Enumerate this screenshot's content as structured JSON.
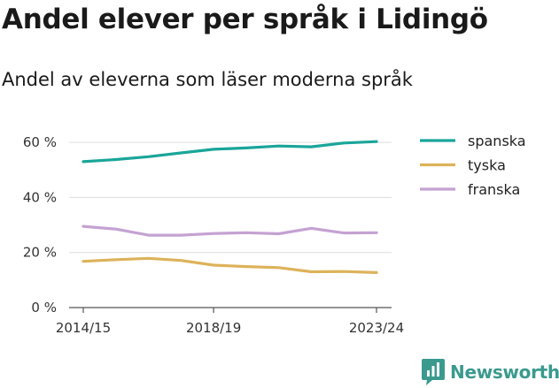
{
  "title": "Andel elever per språk i Lidingö",
  "subtitle": "Andel av eleverna som läser moderna språk",
  "brand": "Newsworthy",
  "chart_data": {
    "type": "line",
    "x": [
      "2014/15",
      "2015/16",
      "2016/17",
      "2017/18",
      "2018/19",
      "2019/20",
      "2020/21",
      "2021/22",
      "2022/23",
      "2023/24"
    ],
    "x_tick_labels": [
      "2014/15",
      "2018/19",
      "2023/24"
    ],
    "y_tick_labels": [
      "0 %",
      "20 %",
      "40 %",
      "60 %"
    ],
    "ylim": [
      0,
      70
    ],
    "y_ticks": [
      0,
      20,
      40,
      60
    ],
    "grid": true,
    "legend_position": "right",
    "series": [
      {
        "name": "spanska",
        "color": "#1aa59a",
        "values": [
          53.0,
          53.8,
          54.8,
          56.2,
          57.5,
          58.0,
          58.7,
          58.4,
          59.8,
          60.3
        ]
      },
      {
        "name": "tyska",
        "color": "#ddb25a",
        "values": [
          16.8,
          17.4,
          17.9,
          17.1,
          15.4,
          14.9,
          14.5,
          13.0,
          13.1,
          12.7
        ]
      },
      {
        "name": "franska",
        "color": "#c4a2d2",
        "values": [
          29.5,
          28.5,
          26.3,
          26.3,
          26.9,
          27.2,
          26.8,
          28.8,
          27.1,
          27.2
        ]
      }
    ]
  }
}
